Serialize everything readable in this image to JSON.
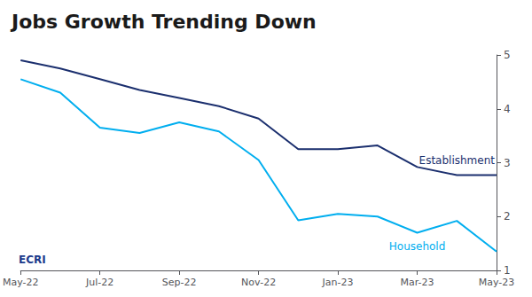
{
  "chart_data": {
    "type": "line",
    "title": "Jobs Growth Trending Down",
    "categories": [
      "May-22",
      null,
      "Jul-22",
      null,
      "Sep-22",
      null,
      "Nov-22",
      null,
      "Jan-23",
      null,
      "Mar-23",
      null,
      "May-23"
    ],
    "series": [
      {
        "name": "Establishment",
        "color": "#1b2f6e",
        "values": [
          4.9,
          4.75,
          4.55,
          4.35,
          4.2,
          4.05,
          3.82,
          3.25,
          3.25,
          3.32,
          2.92,
          2.77,
          2.77
        ]
      },
      {
        "name": "Household",
        "color": "#00aeef",
        "values": [
          4.55,
          4.3,
          3.65,
          3.55,
          3.75,
          3.58,
          3.05,
          1.93,
          2.05,
          2.0,
          1.7,
          1.92,
          1.35
        ]
      }
    ],
    "annotations": [
      {
        "text": "ECRI",
        "color": "#1b3a8c"
      }
    ],
    "ylim": [
      1,
      5
    ],
    "yticks": [
      1,
      2,
      3,
      4,
      5
    ],
    "grid": false
  }
}
